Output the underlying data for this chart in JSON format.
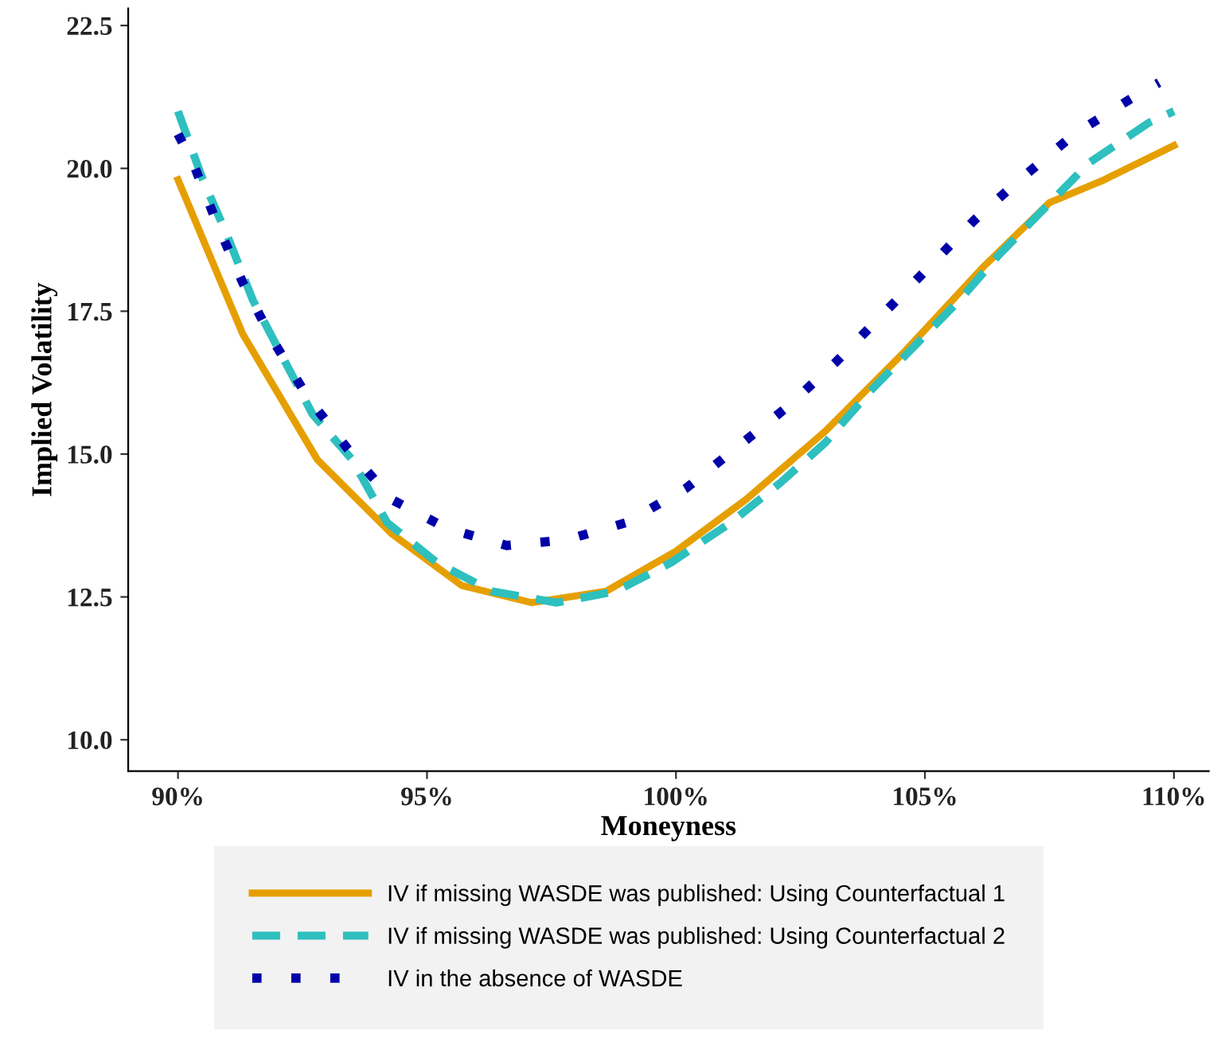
{
  "chart_data": {
    "type": "line",
    "xlabel": "Moneyness",
    "ylabel": "Implied Volatility",
    "xlim": [
      89.0,
      110.7
    ],
    "ylim": [
      9.45,
      22.8
    ],
    "xticks": [
      {
        "value": 90,
        "label": "90%"
      },
      {
        "value": 95,
        "label": "95%"
      },
      {
        "value": 100,
        "label": "100%"
      },
      {
        "value": 105,
        "label": "105%"
      },
      {
        "value": 110,
        "label": "110%"
      }
    ],
    "yticks": [
      {
        "value": 10,
        "label": "10.0"
      },
      {
        "value": 12.5,
        "label": "12.5"
      },
      {
        "value": 15,
        "label": "15.0"
      },
      {
        "value": 17.5,
        "label": "17.5"
      },
      {
        "value": 20,
        "label": "20.0"
      },
      {
        "value": 22.5,
        "label": "22.5"
      }
    ],
    "grid": false,
    "legend": "bottom",
    "marker": "none",
    "series": [
      {
        "name": "IV if missing WASDE was published: Using Counterfactual 1",
        "color": "#e69f00",
        "line_style": "solid",
        "x": [
          90,
          91.3,
          92.8,
          94.3,
          95.7,
          97.1,
          98.6,
          100,
          101.4,
          103,
          104.6,
          106.2,
          107.5,
          108.6,
          110
        ],
        "values": [
          19.8,
          17.1,
          14.9,
          13.6,
          12.7,
          12.4,
          12.6,
          13.3,
          14.2,
          15.4,
          16.8,
          18.3,
          19.4,
          19.8,
          20.4
        ]
      },
      {
        "name": "IV if missing WASDE was published: Using Counterfactual 2",
        "color": "#2ebfbf",
        "line_style": "dashed",
        "x": [
          90,
          90.5,
          91.0,
          91.5,
          92.1,
          92.7,
          93.5,
          94.2,
          95.2,
          96.3,
          97.6,
          98.8,
          99.9,
          101.1,
          102.1,
          103,
          103.9,
          104.8,
          105.7,
          106.5,
          107.4,
          108.3,
          109.5,
          110
        ],
        "values": [
          21.0,
          19.8,
          18.8,
          17.7,
          16.7,
          15.7,
          14.9,
          13.8,
          13.1,
          12.6,
          12.4,
          12.6,
          13.1,
          13.8,
          14.5,
          15.2,
          16.1,
          16.9,
          17.7,
          18.5,
          19.3,
          20.1,
          20.8,
          21.0
        ]
      },
      {
        "name": "IV in the absence of WASDE",
        "color": "#0000a8",
        "line_style": "dotted",
        "x": [
          90,
          90.3,
          90.8,
          91.3,
          91.9,
          92.6,
          93.4,
          94.3,
          95.4,
          96.6,
          97.8,
          99.0,
          100.2,
          101.2,
          102.2,
          103.2,
          104.1,
          105.0,
          106.0,
          106.9,
          108.0,
          109.1,
          109.7
        ],
        "values": [
          20.6,
          20.1,
          19.0,
          18.0,
          17.0,
          16.0,
          15.1,
          14.2,
          13.7,
          13.4,
          13.5,
          13.8,
          14.4,
          15.1,
          15.8,
          16.6,
          17.4,
          18.2,
          19.1,
          19.8,
          20.6,
          21.2,
          21.5
        ]
      }
    ]
  }
}
